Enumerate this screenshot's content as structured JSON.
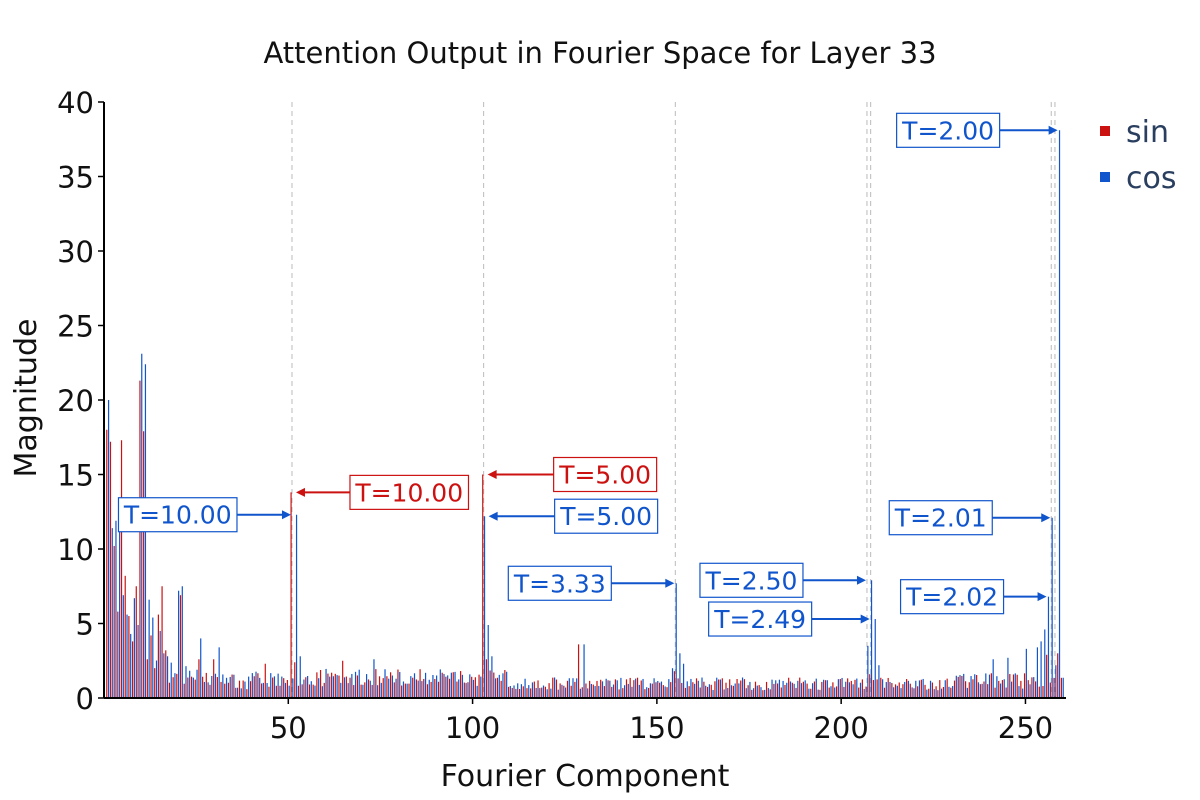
{
  "chart_data": {
    "type": "bar",
    "title": "Attention Output in Fourier Space for Layer 33",
    "xlabel": "Fourier Component",
    "ylabel": "Magnitude",
    "xlim": [
      0,
      261
    ],
    "ylim": [
      0,
      40
    ],
    "xticks": [
      50,
      100,
      150,
      200,
      250
    ],
    "yticks": [
      0,
      5,
      10,
      15,
      20,
      25,
      30,
      35,
      40
    ],
    "grid": false,
    "legend_position": "top-right",
    "colors": {
      "sin": "#cc1111",
      "cos": "#1155cc",
      "axis": "#000000",
      "vline": "#bbbbbb"
    },
    "series": [
      {
        "name": "sin",
        "key_values": [
          [
            1,
            18.0
          ],
          [
            2,
            17.2
          ],
          [
            3,
            10.2
          ],
          [
            4,
            5.8
          ],
          [
            5,
            17.3
          ],
          [
            6,
            8.2
          ],
          [
            7,
            5.5
          ],
          [
            8,
            3.8
          ],
          [
            9,
            7.5
          ],
          [
            10,
            21.3
          ],
          [
            11,
            17.9
          ],
          [
            12,
            2.6
          ],
          [
            13,
            4.2
          ],
          [
            15,
            5.6
          ],
          [
            16,
            7.5
          ],
          [
            17,
            3.2
          ],
          [
            21,
            6.9
          ],
          [
            26,
            2.6
          ],
          [
            30,
            2.6
          ],
          [
            44,
            2.3
          ],
          [
            51,
            13.8
          ],
          [
            52,
            2.4
          ],
          [
            65,
            2.5
          ],
          [
            103,
            15.0
          ],
          [
            104,
            2.6
          ],
          [
            129,
            3.6
          ],
          [
            155,
            1.8
          ],
          [
            208,
            1.6
          ],
          [
            256,
            2.9
          ],
          [
            259,
            3.0
          ]
        ],
        "noise_level": 1.0
      },
      {
        "name": "cos",
        "key_values": [
          [
            1,
            20.0
          ],
          [
            2,
            11.4
          ],
          [
            3,
            11.9
          ],
          [
            4,
            13.2
          ],
          [
            5,
            6.9
          ],
          [
            6,
            5.6
          ],
          [
            7,
            4.3
          ],
          [
            8,
            6.7
          ],
          [
            9,
            4.9
          ],
          [
            10,
            23.1
          ],
          [
            11,
            22.4
          ],
          [
            12,
            6.6
          ],
          [
            13,
            5.4
          ],
          [
            15,
            4.5
          ],
          [
            16,
            3.0
          ],
          [
            17,
            2.8
          ],
          [
            20,
            7.2
          ],
          [
            21,
            7.5
          ],
          [
            26,
            4.0
          ],
          [
            31,
            3.4
          ],
          [
            52,
            12.3
          ],
          [
            53,
            2.8
          ],
          [
            73,
            2.6
          ],
          [
            103,
            12.2
          ],
          [
            104,
            4.9
          ],
          [
            105,
            2.8
          ],
          [
            130,
            3.6
          ],
          [
            154,
            2.0
          ],
          [
            155,
            7.7
          ],
          [
            156,
            3.0
          ],
          [
            157,
            2.3
          ],
          [
            207,
            3.5
          ],
          [
            208,
            7.9
          ],
          [
            209,
            5.3
          ],
          [
            210,
            2.2
          ],
          [
            241,
            2.6
          ],
          [
            245,
            2.7
          ],
          [
            250,
            3.3
          ],
          [
            253,
            3.4
          ],
          [
            254,
            3.8
          ],
          [
            255,
            4.6
          ],
          [
            256,
            6.8
          ],
          [
            257,
            12.1
          ],
          [
            258,
            2.2
          ],
          [
            259,
            38.1
          ]
        ],
        "noise_level": 1.0
      }
    ],
    "vlines": [
      51,
      103,
      155,
      207,
      208,
      257,
      258
    ],
    "annotations": [
      {
        "text": "T=10.00",
        "series": "cos",
        "x": 51,
        "y": 12.3,
        "box_side": "left"
      },
      {
        "text": "T=10.00",
        "series": "sin",
        "x": 51,
        "y": 13.8,
        "box_side": "right"
      },
      {
        "text": "T=5.00",
        "series": "sin",
        "x": 103,
        "y": 15.0,
        "box_side": "right"
      },
      {
        "text": "T=5.00",
        "series": "cos",
        "x": 103,
        "y": 12.2,
        "box_side": "right"
      },
      {
        "text": "T=3.33",
        "series": "cos",
        "x": 155,
        "y": 7.7,
        "box_side": "left"
      },
      {
        "text": "T=2.50",
        "series": "cos",
        "x": 207,
        "y": 7.9,
        "box_side": "left"
      },
      {
        "text": "T=2.49",
        "series": "cos",
        "x": 208,
        "y": 5.3,
        "box_side": "left"
      },
      {
        "text": "T=2.02",
        "series": "cos",
        "x": 256,
        "y": 6.8,
        "box_side": "left"
      },
      {
        "text": "T=2.01",
        "series": "cos",
        "x": 257,
        "y": 12.1,
        "box_side": "left"
      },
      {
        "text": "T=2.00",
        "series": "cos",
        "x": 259,
        "y": 38.1,
        "box_side": "left"
      }
    ]
  }
}
